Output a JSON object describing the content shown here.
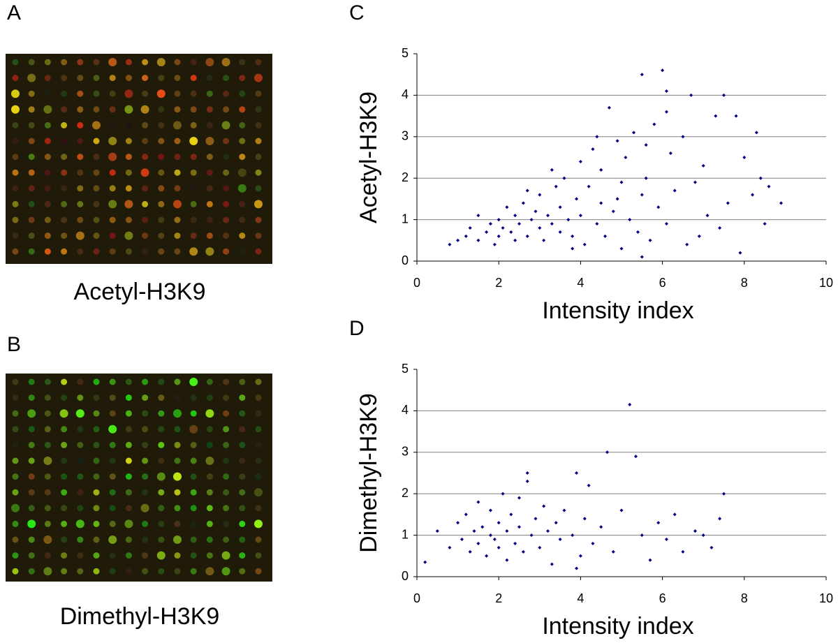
{
  "image_panels": [
    {
      "label": "A",
      "caption": "Acetyl-H3K9"
    },
    {
      "label": "B",
      "caption": "Dimethyl-H3K9"
    }
  ],
  "chart_data": [
    {
      "type": "scatter",
      "panel_label": "C",
      "xlabel": "Intensity index",
      "ylabel": "Acetyl-H3K9",
      "xlim": [
        0,
        10
      ],
      "ylim": [
        0,
        5
      ],
      "xticks": [
        0,
        2,
        4,
        6,
        8,
        10
      ],
      "yticks": [
        0,
        1,
        2,
        3,
        4,
        5
      ],
      "grid": true,
      "color": "#000080",
      "x": [
        0.8,
        1.0,
        1.2,
        1.3,
        1.5,
        1.5,
        1.7,
        1.8,
        1.9,
        2.0,
        2.0,
        2.1,
        2.2,
        2.3,
        2.4,
        2.4,
        2.5,
        2.6,
        2.7,
        2.8,
        2.9,
        3.0,
        3.0,
        3.1,
        3.2,
        3.3,
        3.4,
        3.5,
        3.5,
        3.6,
        3.7,
        3.8,
        3.9,
        4.0,
        4.0,
        4.1,
        4.2,
        4.3,
        4.4,
        4.5,
        4.5,
        4.6,
        4.7,
        4.8,
        4.9,
        5.0,
        5.0,
        5.1,
        5.2,
        5.3,
        5.4,
        5.5,
        5.5,
        5.6,
        5.7,
        5.8,
        5.9,
        6.0,
        6.1,
        6.1,
        6.2,
        6.3,
        6.5,
        6.6,
        6.7,
        6.8,
        7.0,
        7.1,
        7.3,
        7.4,
        7.5,
        7.6,
        7.8,
        7.9,
        8.0,
        8.2,
        8.3,
        8.4,
        8.5,
        8.6,
        8.9,
        5.6,
        6.1,
        5.5,
        4.4,
        3.3,
        2.7,
        3.8,
        4.9,
        6.9
      ],
      "y": [
        0.4,
        0.5,
        0.6,
        0.8,
        0.5,
        1.1,
        0.7,
        0.9,
        0.4,
        0.6,
        1.0,
        0.8,
        1.3,
        0.7,
        0.5,
        1.1,
        0.9,
        1.4,
        0.6,
        1.0,
        1.2,
        0.8,
        1.6,
        0.5,
        1.1,
        0.9,
        1.8,
        0.7,
        1.3,
        2.0,
        1.0,
        0.6,
        1.5,
        2.4,
        1.1,
        0.4,
        1.8,
        2.7,
        0.9,
        1.4,
        2.2,
        0.6,
        3.7,
        1.2,
        2.9,
        0.3,
        1.9,
        2.5,
        1.0,
        3.1,
        0.7,
        1.6,
        4.5,
        2.0,
        0.5,
        3.3,
        1.3,
        4.6,
        4.1,
        0.9,
        2.6,
        1.7,
        3.0,
        0.4,
        4.0,
        1.9,
        2.3,
        1.1,
        3.5,
        0.8,
        4.0,
        1.4,
        3.5,
        0.2,
        2.5,
        1.6,
        3.1,
        2.0,
        0.9,
        1.8,
        1.4,
        2.8,
        3.6,
        0.1,
        3.0,
        2.2,
        1.7,
        0.3,
        1.5,
        0.6
      ]
    },
    {
      "type": "scatter",
      "panel_label": "D",
      "xlabel": "Intensity index",
      "ylabel": "Dimethyl-H3K9",
      "xlim": [
        0,
        10
      ],
      "ylim": [
        0,
        5
      ],
      "xticks": [
        0,
        2,
        4,
        6,
        8,
        10
      ],
      "yticks": [
        0,
        1,
        2,
        3,
        4,
        5
      ],
      "grid": true,
      "color": "#000080",
      "x": [
        0.2,
        0.5,
        0.8,
        1.0,
        1.1,
        1.2,
        1.3,
        1.4,
        1.5,
        1.5,
        1.6,
        1.7,
        1.8,
        1.8,
        1.9,
        2.0,
        2.0,
        2.1,
        2.2,
        2.2,
        2.3,
        2.4,
        2.5,
        2.5,
        2.6,
        2.7,
        2.8,
        2.9,
        3.0,
        3.1,
        3.2,
        3.3,
        3.4,
        3.5,
        3.6,
        3.8,
        3.9,
        4.0,
        4.1,
        4.2,
        4.3,
        4.5,
        4.65,
        4.8,
        5.0,
        5.2,
        5.35,
        5.5,
        5.7,
        5.9,
        6.1,
        6.3,
        6.5,
        6.8,
        7.0,
        7.2,
        7.5,
        7.4,
        2.7,
        3.9
      ],
      "y": [
        0.35,
        1.1,
        0.7,
        1.3,
        0.9,
        1.5,
        0.6,
        1.1,
        0.8,
        1.8,
        1.2,
        0.5,
        1.0,
        1.6,
        0.9,
        1.3,
        0.7,
        2.0,
        1.1,
        0.4,
        1.5,
        0.8,
        1.2,
        1.9,
        0.6,
        2.5,
        1.0,
        1.4,
        0.7,
        1.7,
        1.1,
        0.3,
        1.3,
        0.9,
        1.6,
        1.0,
        2.5,
        0.5,
        1.4,
        2.2,
        0.8,
        1.2,
        3.0,
        0.6,
        1.6,
        4.15,
        2.9,
        1.0,
        0.4,
        1.3,
        0.9,
        1.5,
        0.6,
        1.1,
        1.0,
        0.7,
        2.0,
        1.4,
        2.3,
        0.2
      ]
    }
  ]
}
